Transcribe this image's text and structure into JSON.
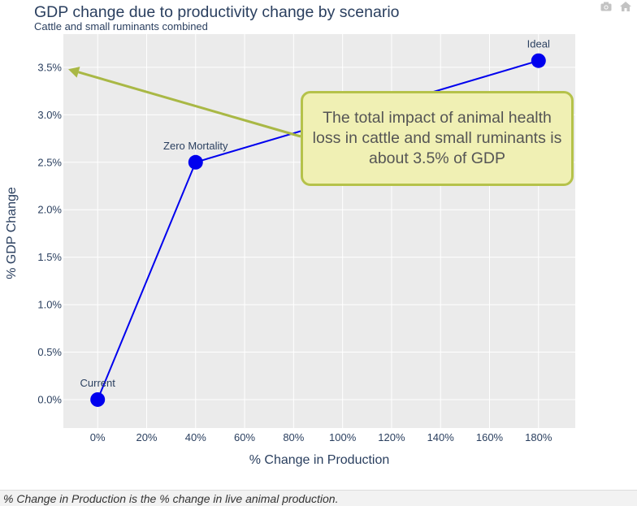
{
  "chart_data": {
    "type": "line",
    "title": "GDP change due to productivity change by scenario",
    "subtitle": "Cattle and small ruminants combined",
    "xlabel": "% Change in Production",
    "ylabel": "% GDP Change",
    "xlim": [
      -14,
      195
    ],
    "ylim": [
      -0.3,
      3.85
    ],
    "x_ticks": [
      0,
      20,
      40,
      60,
      80,
      100,
      120,
      140,
      160,
      180
    ],
    "x_tick_labels": [
      "0%",
      "20%",
      "40%",
      "60%",
      "80%",
      "100%",
      "120%",
      "140%",
      "160%",
      "180%"
    ],
    "y_ticks": [
      0,
      0.5,
      1.0,
      1.5,
      2.0,
      2.5,
      3.0,
      3.5
    ],
    "y_tick_labels": [
      "0.0%",
      "0.5%",
      "1.0%",
      "1.5%",
      "2.0%",
      "2.5%",
      "3.0%",
      "3.5%"
    ],
    "grid": true,
    "series": [
      {
        "points": [
          {
            "x": 0,
            "y": 0.0,
            "label": "Current"
          },
          {
            "x": 40,
            "y": 2.5,
            "label": "Zero Mortality"
          },
          {
            "x": 180,
            "y": 3.57,
            "label": "Ideal"
          }
        ]
      }
    ],
    "annotation": {
      "text": "The total impact of animal health loss in cattle and small ruminants is about 3.5% of GDP",
      "arrow_to": {
        "x": -12,
        "y": 3.48
      }
    }
  },
  "colors": {
    "line": "#0000ee",
    "marker": "#0000ee",
    "plot_bg": "#ebebeb",
    "grid": "#ffffff",
    "arrow": "#a9b845",
    "callout_bg": "#f0f0b4",
    "callout_border": "#b5c24a",
    "title_text": "#2a3f5f"
  },
  "modebar": {
    "camera_icon": "camera-icon",
    "home_icon": "home-icon"
  },
  "caption": "% Change in Production is the % change in live animal production."
}
